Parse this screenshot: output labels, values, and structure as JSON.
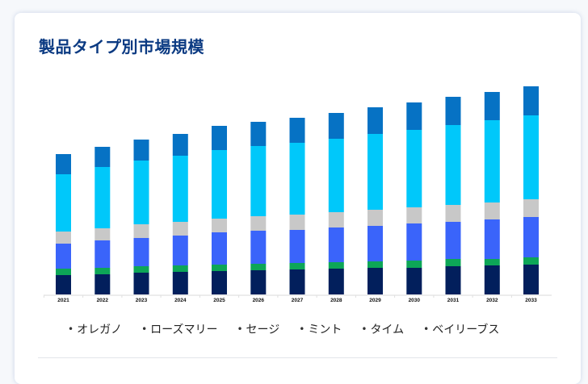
{
  "card": {
    "title": "製品タイプ別市場規模"
  },
  "chart_data": {
    "type": "bar",
    "stacked": true,
    "title": "製品タイプ別市場規模",
    "xlabel": "",
    "ylabel": "",
    "units": "relative (no y-axis shown)",
    "grid": false,
    "legend_position": "bottom",
    "categories": [
      "2021",
      "2022",
      "2023",
      "2024",
      "2025",
      "2026",
      "2027",
      "2028",
      "2029",
      "2030",
      "2031",
      "2032",
      "2033"
    ],
    "series": [
      {
        "name": "オレガノ",
        "color": "#021f5c",
        "values": [
          24,
          25,
          27,
          28,
          29,
          30,
          31,
          32,
          33,
          33,
          35,
          36,
          37
        ]
      },
      {
        "name": "ローズマリー",
        "color": "#0da657",
        "values": [
          8,
          8,
          8,
          8,
          8,
          8,
          8,
          8,
          8,
          9,
          9,
          8,
          9
        ]
      },
      {
        "name": "セージ",
        "color": "#3a64fa",
        "values": [
          31,
          34,
          35,
          37,
          40,
          41,
          41,
          43,
          44,
          46,
          46,
          49,
          50
        ]
      },
      {
        "name": "ミント",
        "color": "#c8c8c8",
        "values": [
          15,
          15,
          17,
          17,
          17,
          18,
          19,
          19,
          20,
          20,
          21,
          21,
          22
        ]
      },
      {
        "name": "タイム",
        "color": "#00c8fa",
        "values": [
          71,
          76,
          79,
          82,
          85,
          87,
          89,
          91,
          94,
          96,
          99,
          102,
          104
        ]
      },
      {
        "name": "ベイリーブス",
        "color": "#0672c4",
        "values": [
          25,
          25,
          26,
          27,
          30,
          30,
          31,
          32,
          33,
          34,
          35,
          35,
          36
        ]
      }
    ],
    "ylim": [
      0,
      260
    ]
  },
  "legend": {
    "bullet": "•",
    "items": [
      "オレガノ",
      "ローズマリー",
      "セージ",
      "ミント",
      "タイム",
      "ベイリーブス"
    ]
  }
}
